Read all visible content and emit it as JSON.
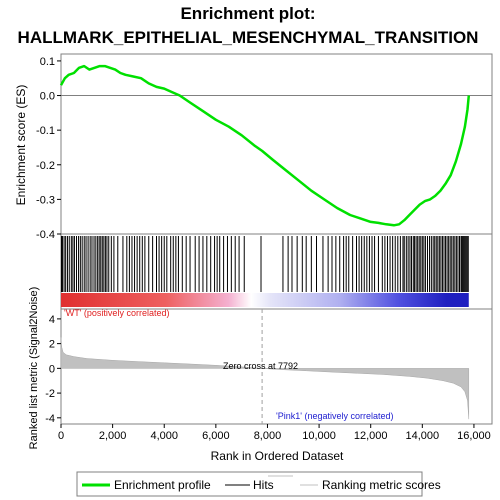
{
  "chart_data": {
    "type": "line",
    "title_line1": "Enrichment plot:",
    "title_line2": "HALLMARK_EPITHELIAL_MESENCHYMAL_TRANSITION",
    "es_panel": {
      "ylabel": "Enrichment score (ES)",
      "ylim": [
        -0.4,
        0.12
      ],
      "yticks": [
        0.1,
        0.0,
        -0.1,
        -0.2,
        -0.3,
        -0.4
      ],
      "ytick_labels": [
        "0.1",
        "0.0",
        "-0.1",
        "-0.2",
        "-0.3",
        "-0.4"
      ],
      "series": [
        {
          "name": "Enrichment profile",
          "color": "#00e000",
          "x": [
            0,
            150,
            300,
            500,
            700,
            900,
            1100,
            1300,
            1500,
            1700,
            1900,
            2100,
            2300,
            2500,
            2800,
            3100,
            3400,
            3700,
            4000,
            4300,
            4600,
            5000,
            5500,
            6000,
            6500,
            7000,
            7500,
            7792,
            8200,
            8700,
            9200,
            9700,
            10200,
            10700,
            11200,
            11600,
            12000,
            12300,
            12600,
            12900,
            13100,
            13300,
            13500,
            13700,
            13900,
            14100,
            14300,
            14500,
            14700,
            14900,
            15100,
            15300,
            15500,
            15650,
            15750,
            15800
          ],
          "y": [
            0.03,
            0.05,
            0.06,
            0.065,
            0.08,
            0.085,
            0.075,
            0.08,
            0.085,
            0.085,
            0.08,
            0.075,
            0.065,
            0.06,
            0.055,
            0.05,
            0.035,
            0.025,
            0.02,
            0.01,
            0.0,
            -0.02,
            -0.045,
            -0.07,
            -0.09,
            -0.115,
            -0.145,
            -0.16,
            -0.185,
            -0.215,
            -0.245,
            -0.275,
            -0.3,
            -0.325,
            -0.345,
            -0.355,
            -0.365,
            -0.368,
            -0.372,
            -0.375,
            -0.372,
            -0.36,
            -0.345,
            -0.33,
            -0.315,
            -0.305,
            -0.3,
            -0.29,
            -0.275,
            -0.255,
            -0.23,
            -0.19,
            -0.14,
            -0.09,
            -0.04,
            0.0
          ]
        }
      ]
    },
    "hits_panel": {
      "hit_positions": [
        20,
        60,
        120,
        180,
        250,
        320,
        400,
        460,
        520,
        600,
        680,
        750,
        820,
        900,
        970,
        1050,
        1130,
        1200,
        1280,
        1350,
        1420,
        1480,
        1540,
        1600,
        1660,
        1720,
        1780,
        1850,
        1950,
        2050,
        2200,
        2400,
        2550,
        2650,
        2750,
        2850,
        2950,
        3050,
        3150,
        3250,
        3400,
        3550,
        3700,
        3800,
        3900,
        4000,
        4100,
        4250,
        4350,
        4450,
        4550,
        4700,
        4850,
        5000,
        5200,
        5350,
        5500,
        5650,
        5800,
        5950,
        6050,
        6150,
        6300,
        6450,
        6600,
        6750,
        6900,
        7100,
        7750,
        8600,
        8800,
        8950,
        9150,
        9350,
        9500,
        9700,
        9900,
        10150,
        10350,
        10500,
        10650,
        10800,
        10950,
        11050,
        11150,
        11300,
        11450,
        11550,
        11650,
        11750,
        11850,
        11950,
        12050,
        12150,
        12300,
        12450,
        12550,
        12650,
        12750,
        12850,
        12950,
        13050,
        13150,
        13250,
        13300,
        13380,
        13450,
        13520,
        13580,
        13650,
        13700,
        13760,
        13820,
        13880,
        13940,
        14000,
        14060,
        14120,
        14200,
        14280,
        14350,
        14420,
        14480,
        14540,
        14600,
        14660,
        14720,
        14780,
        14840,
        14900,
        14960,
        15020,
        15080,
        15140,
        15200,
        15260,
        15320,
        15380,
        15440,
        15500,
        15540,
        15580,
        15620,
        15660,
        15700,
        15740,
        15780
      ]
    },
    "metric_panel": {
      "ylabel": "Ranked list metric (Signal2Noise)",
      "ylim": [
        -4.5,
        4.8
      ],
      "yticks": [
        4,
        2,
        0,
        -2,
        -4
      ],
      "ytick_labels": [
        "4",
        "2",
        "0",
        "-2",
        "-4"
      ],
      "x": [
        0,
        30,
        80,
        200,
        500,
        1000,
        2000,
        3000,
        4000,
        5000,
        6000,
        7000,
        7792,
        8500,
        9500,
        10500,
        11500,
        12500,
        13500,
        14200,
        14800,
        15200,
        15500,
        15650,
        15750,
        15800
      ],
      "values": [
        2.5,
        1.7,
        1.3,
        1.1,
        0.95,
        0.8,
        0.65,
        0.55,
        0.45,
        0.35,
        0.25,
        0.12,
        0.0,
        -0.1,
        -0.2,
        -0.3,
        -0.4,
        -0.5,
        -0.65,
        -0.8,
        -1.0,
        -1.2,
        -1.5,
        -1.9,
        -2.6,
        -4.1
      ],
      "label_pos": "'WT' (positively correlated)",
      "label_neg": "'Pink1' (negatively correlated)",
      "zero_cross_label": "Zero cross at 7792",
      "zero_cross": 7792
    },
    "xlabel": "Rank in Ordered Dataset",
    "xlim": [
      0,
      16700
    ],
    "xticks": [
      0,
      2000,
      4000,
      6000,
      8000,
      10000,
      12000,
      14000,
      16000
    ],
    "xtick_labels": [
      "0",
      "2,000",
      "4,000",
      "6,000",
      "8,000",
      "10,000",
      "12,000",
      "14,000",
      "16,000"
    ],
    "n_genes": 15800,
    "legend": {
      "items": [
        "Enrichment profile",
        "Hits",
        "Ranking metric scores"
      ]
    },
    "colors": {
      "profile": "#00e000",
      "hits": "#000000",
      "metric_fill": "#c0c0c0",
      "pos_label": "#e02020",
      "neg_label": "#2020d0"
    }
  }
}
